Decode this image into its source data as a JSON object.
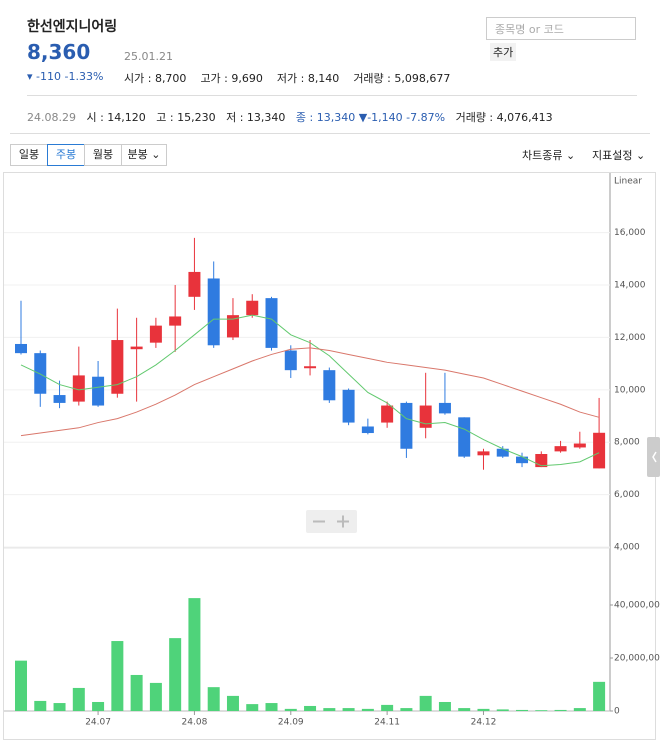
{
  "header": {
    "name": "한선엔지니어링",
    "price": "8,360",
    "date": "25.01.21",
    "change": "-110",
    "change_pct": "-1.33%",
    "fields": [
      "시가 : 8,700",
      "고가 : 9,690",
      "저가 : 8,140",
      "거래량 : 5,098,677"
    ],
    "search_placeholder": "종목명 or 코드",
    "add_button": "추가"
  },
  "detail": {
    "date": "24.08.29",
    "fields": [
      "시 : 14,120",
      "고 : 15,230",
      "저 : 13,340"
    ],
    "close": "종 : 13,340",
    "change": "-1,140 -7.87%",
    "volume": "거래량 : 4,076,413"
  },
  "toolbar": {
    "periods": [
      "일봉",
      "주봉",
      "월봉",
      "분봉"
    ],
    "active": 1,
    "menus": [
      "차트종류",
      "지표설정"
    ]
  },
  "chart_data": {
    "type": "candlestick",
    "scale_label": "Linear",
    "categories": [
      null,
      null,
      null,
      null,
      "24.07",
      null,
      null,
      null,
      null,
      "24.08",
      null,
      null,
      null,
      null,
      "24.09",
      null,
      null,
      null,
      null,
      "24.11",
      null,
      null,
      null,
      null,
      "24.12",
      null,
      null,
      null,
      null,
      null,
      null
    ],
    "open": [
      11750,
      11400,
      9800,
      9550,
      10500,
      9850,
      11550,
      11800,
      12450,
      13550,
      14250,
      12000,
      12850,
      13500,
      11500,
      10850,
      10750,
      10000,
      8600,
      8750,
      9500,
      8550,
      9500,
      8950,
      7500,
      7750,
      7450,
      7050,
      7650,
      7800,
      7000
    ],
    "high": [
      13400,
      11500,
      10350,
      11650,
      11100,
      13100,
      12750,
      12750,
      14000,
      15800,
      14900,
      13500,
      13650,
      13550,
      11700,
      11900,
      10850,
      10050,
      8900,
      9550,
      9550,
      10650,
      10650,
      8950,
      7750,
      7850,
      7600,
      7650,
      8050,
      8400,
      9690
    ],
    "low": [
      11350,
      9350,
      9300,
      9400,
      9350,
      9700,
      9550,
      11600,
      11450,
      13050,
      11600,
      11900,
      12750,
      11500,
      10450,
      10550,
      9500,
      8650,
      8300,
      8550,
      7400,
      8150,
      9050,
      7400,
      6950,
      7400,
      7050,
      7050,
      7600,
      7750,
      7000
    ],
    "close": [
      11400,
      9850,
      9500,
      10550,
      9400,
      11900,
      11650,
      12450,
      12800,
      14500,
      11700,
      12850,
      13400,
      11600,
      10750,
      10900,
      9600,
      8750,
      8350,
      9400,
      7750,
      9400,
      9100,
      7450,
      7650,
      7450,
      7200,
      7550,
      7850,
      7950,
      8360
    ],
    "up_color": "#e8333b",
    "down_color": "#2f7be0",
    "lines": [
      {
        "color": "#62c96f",
        "values": [
          10950,
          10600,
          10200,
          10000,
          10100,
          10200,
          10500,
          10950,
          11500,
          12100,
          12700,
          12700,
          12850,
          12700,
          12100,
          11800,
          11300,
          10600,
          9900,
          9500,
          8900,
          8700,
          8750,
          8500,
          8100,
          7750,
          7450,
          7100,
          7150,
          7250,
          7600
        ]
      },
      {
        "color": "#d9776b",
        "values": [
          8250,
          8350,
          8450,
          8550,
          8750,
          8900,
          9150,
          9450,
          9800,
          10200,
          10500,
          10800,
          11100,
          11350,
          11550,
          11600,
          11500,
          11350,
          11200,
          11050,
          10950,
          10850,
          10750,
          10600,
          10450,
          10200,
          9950,
          9700,
          9450,
          9150,
          8950
        ]
      }
    ],
    "ylim": [
      4000,
      18200
    ],
    "yticks": [
      {
        "value": 4000,
        "label": "4,000"
      },
      {
        "value": 6000,
        "label": "6,000"
      },
      {
        "value": 8000,
        "label": "8,000"
      },
      {
        "value": 10000,
        "label": "10,000"
      },
      {
        "value": 12000,
        "label": "12,000"
      },
      {
        "value": 14000,
        "label": "14,000"
      },
      {
        "value": 16000,
        "label": "16,000"
      }
    ],
    "volume": [
      19000000,
      3800000,
      3000000,
      8700000,
      3400000,
      26400000,
      13600000,
      10600000,
      27500000,
      42600000,
      9000000,
      5700000,
      2600000,
      3000000,
      800000,
      1900000,
      1100000,
      1100000,
      800000,
      2300000,
      1100000,
      5700000,
      3400000,
      1100000,
      800000,
      600000,
      400000,
      300000,
      400000,
      1100000,
      11000000
    ],
    "volume_color": "#4fd37a",
    "volume_ylim": [
      0,
      60000000
    ],
    "volume_yticks": [
      0,
      {
        "value": 20000000,
        "label": "20,000,000"
      },
      {
        "value": 40000000,
        "label": "40,000,000"
      }
    ]
  }
}
